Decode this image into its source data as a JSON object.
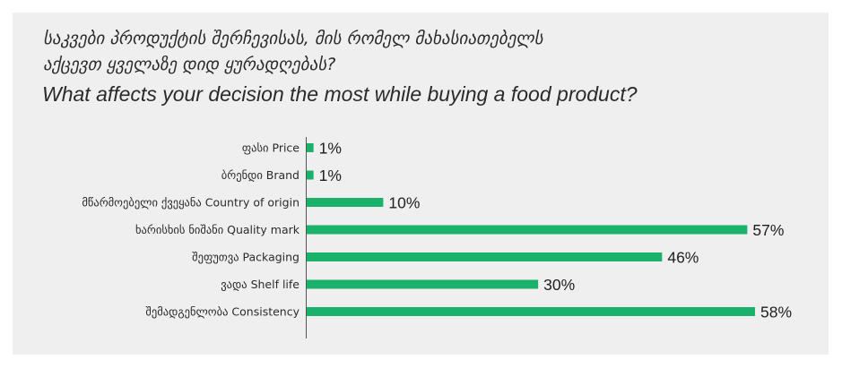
{
  "title_ka_line1": "საკვები პროდუქტის შერჩევისას, მის რომელ მახასიათებელს",
  "title_ka_line2": "აქცევთ ყველაზე დიდ ყურადღებას?",
  "title_en": "What affects your decision the most while buying a food product?",
  "colors": {
    "bar": "#1ab26b",
    "panel": "#efefef",
    "axis": "#555555"
  },
  "chart_data": {
    "type": "bar",
    "orientation": "horizontal",
    "categories": [
      "ფასი Price",
      "ბრენდი Brand",
      "მწარმოებელი ქვეყანა Country of origin",
      "ხარისხის ნიშანი Quality mark",
      "შეფუთვა Packaging",
      "ვადა Shelf life",
      "შემადგენლობა Consistency"
    ],
    "values": [
      1,
      1,
      10,
      57,
      46,
      30,
      58
    ],
    "value_labels": [
      "1%",
      "1%",
      "10%",
      "57%",
      "46%",
      "30%",
      "58%"
    ],
    "unit": "%",
    "xlim": [
      0,
      58
    ],
    "grid": false,
    "legend": "none"
  }
}
